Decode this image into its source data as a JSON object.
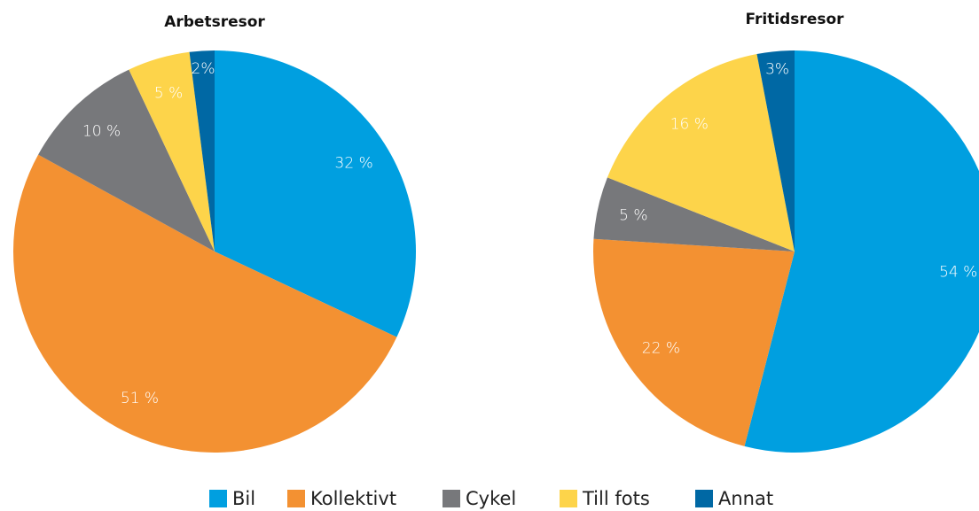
{
  "chart_data": [
    {
      "type": "pie",
      "title": "Arbetsresor",
      "categories": [
        "Bil",
        "Kollektivt",
        "Cykel",
        "Till fots",
        "Annat"
      ],
      "values": [
        32,
        51,
        10,
        5,
        2
      ],
      "value_labels": [
        "32 %",
        "51 %",
        "10 %",
        "5 %",
        "2%"
      ],
      "colors": [
        "#009fe0",
        "#f39132",
        "#77787b",
        "#fdd44a",
        "#0068a4"
      ]
    },
    {
      "type": "pie",
      "title": "Fritidsresor",
      "categories": [
        "Bil",
        "Kollektivt",
        "Cykel",
        "Till fots",
        "Annat"
      ],
      "values": [
        54,
        22,
        5,
        16,
        3
      ],
      "value_labels": [
        "54 %",
        "22 %",
        "5 %",
        "16 %",
        "3%"
      ],
      "colors": [
        "#009fe0",
        "#f39132",
        "#77787b",
        "#fdd44a",
        "#0068a4"
      ]
    }
  ]
}
